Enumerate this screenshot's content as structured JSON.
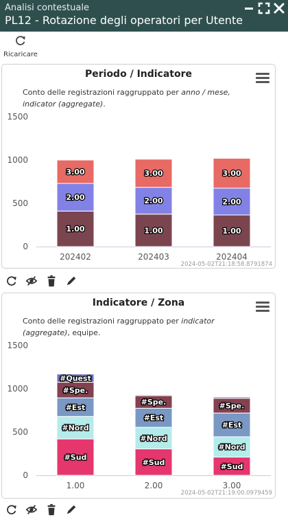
{
  "window": {
    "subtitle": "Analisi contestuale",
    "title": "PL12 - Rotazione degli operatori per Utente",
    "icons": [
      "minimize-icon",
      "maximize-icon",
      "close-icon"
    ]
  },
  "toolbar": {
    "reload_label": "Ricaricare",
    "reload_icon": "refresh-icon"
  },
  "colors": {
    "titlebar": "#2f4f4f",
    "v1": "#7b4550",
    "v2": "#8282e6",
    "v3": "#e86a64",
    "sud": "#e6366e",
    "nord": "#b4ecea",
    "est": "#7a98c4",
    "spe": "#844150",
    "quest": "#6a74c6"
  },
  "panels": [
    {
      "title": "Periodo / Indicatore",
      "description": "Conto delle registrazioni raggruppato per anno / mese, indicator (aggregate).",
      "timestamp": "2024-05-02T21:18:58.8791874",
      "actions": [
        "refresh-icon",
        "hide-icon",
        "trash-icon",
        "edit-icon"
      ]
    },
    {
      "title": "Indicatore / Zona",
      "description": "Conto delle registrazioni raggruppato per indicator (aggregate), equipe.",
      "timestamp": "2024-05-02T21:19:00.0979459",
      "actions": [
        "refresh-icon",
        "hide-icon",
        "trash-icon",
        "edit-icon"
      ]
    }
  ],
  "chart_data": [
    {
      "type": "bar",
      "stacked": true,
      "title": "Periodo / Indicatore",
      "categories": [
        "202402",
        "202403",
        "202404"
      ],
      "yticks": [
        "0",
        "500",
        "1000",
        "1500"
      ],
      "ylim": [
        0,
        1500
      ],
      "series": [
        {
          "name": "1.00",
          "color": "#7b4550",
          "values": [
            410,
            375,
            365
          ]
        },
        {
          "name": "2.00",
          "color": "#8282e6",
          "values": [
            320,
            310,
            310
          ]
        },
        {
          "name": "3.00",
          "color": "#e86a64",
          "values": [
            270,
            325,
            345
          ]
        }
      ]
    },
    {
      "type": "bar",
      "stacked": true,
      "title": "Indicatore / Zona",
      "categories": [
        "1.00",
        "2.00",
        "3.00"
      ],
      "yticks": [
        "0",
        "500",
        "1000",
        "1500"
      ],
      "ylim": [
        0,
        1500
      ],
      "series": [
        {
          "name": "#Sud",
          "color": "#e6366e",
          "values": [
            420,
            305,
            210
          ]
        },
        {
          "name": "#Nord",
          "color": "#b4ecea",
          "values": [
            260,
            250,
            235
          ]
        },
        {
          "name": "#Est",
          "color": "#7a98c4",
          "values": [
            215,
            220,
            275
          ]
        },
        {
          "name": "#Spe.",
          "color": "#844150",
          "values": [
            180,
            145,
            170
          ]
        },
        {
          "name": "#Quest",
          "color": "#6a74c6",
          "values": [
            95,
            10,
            15
          ]
        }
      ]
    }
  ]
}
